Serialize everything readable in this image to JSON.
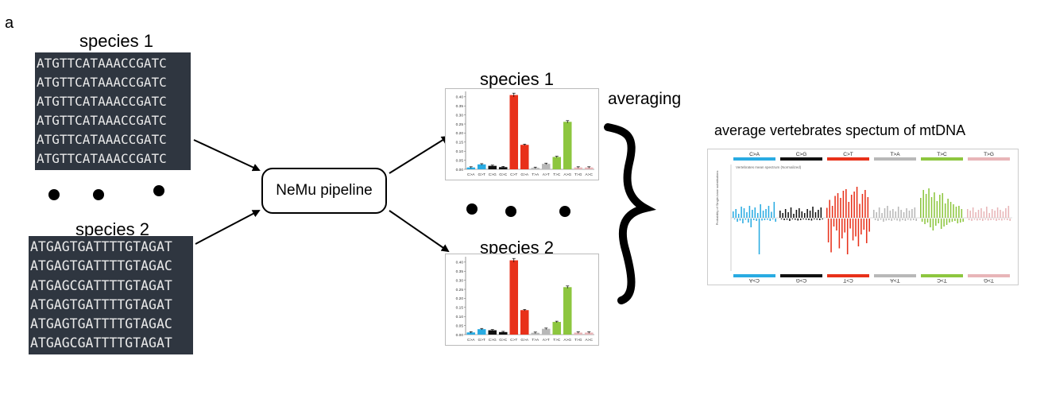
{
  "panel_letter": "a",
  "species": [
    {
      "label": "species 1",
      "sequences": [
        "ATGTTCATAAACCGATC",
        "ATGTTCATAAACCGATC",
        "ATGTTCATAAACCGATC",
        "ATGTTCATAAACCGATC",
        "ATGTTCATAAACCGATC",
        "ATGTTCATAAACCGATC"
      ]
    },
    {
      "label": "species 2",
      "sequences": [
        "ATGAGTGATTTTGTAGAT",
        "ATGAGTGATTTTGTAGAC",
        "ATGAGCGATTTTGTAGAT",
        "ATGAGTGATTTTGTAGAT",
        "ATGAGTGATTTTGTAGAC",
        "ATGAGCGATTTTGTAGAT"
      ]
    }
  ],
  "pipeline_label": "NeMu pipeline",
  "averaging_label": "averaging",
  "average_title": "average vertebrates spectum of mtDNA",
  "colors": {
    "C>A": "#29abe2",
    "G>T": "#29abe2",
    "C>G": "#111111",
    "G>C": "#111111",
    "C>T": "#e8311a",
    "G>A": "#e8311a",
    "T>A": "#b8b8b8",
    "A>T": "#b8b8b8",
    "T>C": "#8dc63f",
    "A>G": "#8dc63f",
    "T>G": "#e8b5b8",
    "A>C": "#e8b5b8"
  },
  "chart_data": [
    {
      "type": "bar",
      "title": "species 1",
      "categories": [
        "C>A",
        "G>T",
        "C>G",
        "G>C",
        "C>T",
        "G>A",
        "T>A",
        "A>T",
        "T>C",
        "A>G",
        "T>G",
        "A>C"
      ],
      "values": [
        0.01,
        0.027,
        0.019,
        0.012,
        0.41,
        0.135,
        0.008,
        0.03,
        0.068,
        0.262,
        0.01,
        0.01
      ],
      "yticks": [
        "0.00",
        "0.05",
        "0.10",
        "0.15",
        "0.20",
        "0.25",
        "0.30",
        "0.35",
        "0.40"
      ],
      "ylim": [
        0,
        0.43
      ]
    },
    {
      "type": "bar",
      "title": "species 2",
      "categories": [
        "C>A",
        "G>T",
        "C>G",
        "G>C",
        "C>T",
        "G>A",
        "T>A",
        "A>T",
        "T>C",
        "A>G",
        "T>G",
        "A>C"
      ],
      "values": [
        0.012,
        0.03,
        0.024,
        0.014,
        0.41,
        0.135,
        0.01,
        0.032,
        0.07,
        0.262,
        0.011,
        0.011
      ],
      "yticks": [
        "0.00",
        "0.05",
        "0.10",
        "0.15",
        "0.20",
        "0.25",
        "0.30",
        "0.35",
        "0.40"
      ],
      "ylim": [
        0,
        0.43
      ]
    },
    {
      "type": "bar",
      "title": "average vertebrates spectum of mtDNA",
      "subtitle": "Vertebrates mean spectrum (Normalized)",
      "ylabel": "Probability of Single-base substitutions",
      "categories_top": [
        "C>A",
        "C>G",
        "C>T",
        "T>A",
        "T>C",
        "T>G"
      ],
      "categories_bottom": [
        "C>A",
        "C>G",
        "C>T",
        "T>A",
        "T>C",
        "T>G"
      ],
      "up_values": [
        [
          0.16,
          0.22,
          0.1,
          0.28,
          0.24,
          0.14,
          0.3,
          0.2,
          0.26,
          0.12,
          0.34,
          0.18,
          0.22,
          0.3,
          0.15,
          0.4
        ],
        [
          0.18,
          0.12,
          0.22,
          0.14,
          0.26,
          0.1,
          0.2,
          0.24,
          0.16,
          0.12,
          0.22,
          0.18,
          0.28,
          0.14,
          0.2,
          0.26
        ],
        [
          0.25,
          0.45,
          0.3,
          0.55,
          0.62,
          0.5,
          0.68,
          0.72,
          0.4,
          0.58,
          0.66,
          0.78,
          0.35,
          0.6,
          0.7,
          0.52
        ],
        [
          0.2,
          0.14,
          0.26,
          0.12,
          0.24,
          0.3,
          0.18,
          0.22,
          0.16,
          0.28,
          0.2,
          0.14,
          0.24,
          0.18,
          0.22,
          0.26
        ],
        [
          0.5,
          0.7,
          0.6,
          0.74,
          0.52,
          0.64,
          0.42,
          0.58,
          0.62,
          0.36,
          0.48,
          0.4,
          0.34,
          0.28,
          0.3,
          0.22
        ],
        [
          0.22,
          0.18,
          0.26,
          0.14,
          0.2,
          0.24,
          0.16,
          0.28,
          0.12,
          0.22,
          0.18,
          0.26,
          0.2,
          0.16,
          0.24,
          0.3
        ]
      ],
      "down_values": [
        [
          0.02,
          0.08,
          0.05,
          0.12,
          0.03,
          0.1,
          0.22,
          0.04,
          0.06,
          0.9,
          0.05,
          0.04,
          0.03,
          0.06,
          0.02,
          0.08
        ],
        [
          0.02,
          0.04,
          0.03,
          0.06,
          0.02,
          0.03,
          0.05,
          0.04,
          0.02,
          0.03,
          0.04,
          0.05,
          0.02,
          0.03,
          0.04,
          0.02
        ],
        [
          0.6,
          0.85,
          0.2,
          0.3,
          0.75,
          0.5,
          0.35,
          0.9,
          0.25,
          0.55,
          0.45,
          0.7,
          0.4,
          0.28,
          0.62,
          0.33
        ],
        [
          0.04,
          0.06,
          0.03,
          0.08,
          0.05,
          0.04,
          0.06,
          0.03,
          0.05,
          0.07,
          0.04,
          0.06,
          0.03,
          0.05,
          0.04,
          0.06
        ],
        [
          0.08,
          0.14,
          0.1,
          0.22,
          0.3,
          0.18,
          0.12,
          0.26,
          0.2,
          0.16,
          0.1,
          0.08,
          0.06,
          0.12,
          0.1,
          0.08
        ],
        [
          0.04,
          0.06,
          0.03,
          0.05,
          0.04,
          0.06,
          0.03,
          0.05,
          0.04,
          0.03,
          0.06,
          0.04,
          0.05,
          0.03,
          0.04,
          0.06
        ]
      ]
    }
  ]
}
